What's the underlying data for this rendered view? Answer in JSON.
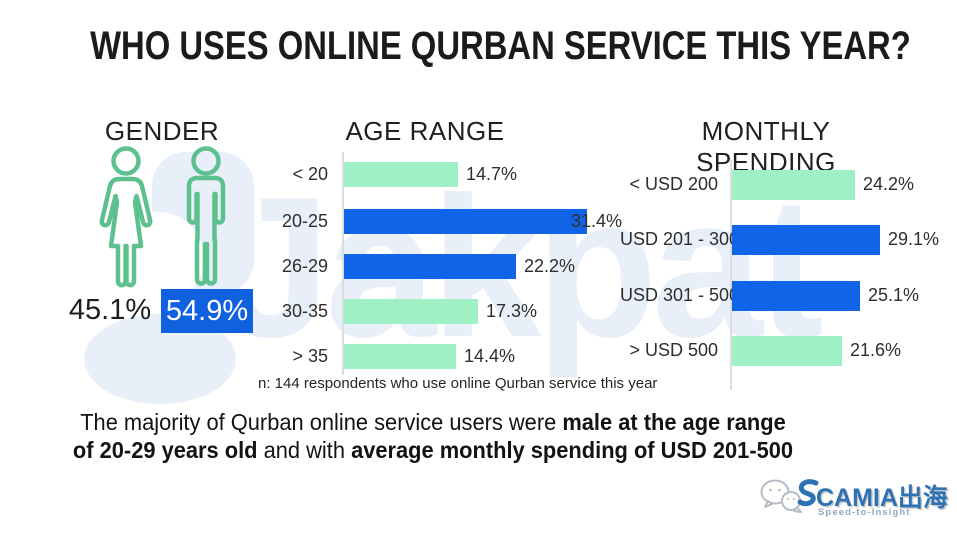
{
  "title": "WHO USES ONLINE QURBAN SERVICE THIS YEAR?",
  "watermark_text": "Jakpat",
  "gender": {
    "heading": "GENDER",
    "female_value": "45.1%",
    "male_value": "54.9%"
  },
  "chart_data": [
    {
      "type": "bar",
      "orientation": "horizontal",
      "title": "AGE RANGE",
      "categories": [
        "< 20",
        "20-25",
        "26-29",
        "30-35",
        "> 35"
      ],
      "values": [
        14.7,
        31.4,
        22.2,
        17.3,
        14.4
      ],
      "value_labels": [
        "14.7%",
        "31.4%",
        "22.2%",
        "17.3%",
        "14.4%"
      ],
      "bar_colors": [
        "green",
        "blue",
        "blue",
        "green",
        "green"
      ],
      "xlim": [
        0,
        35
      ],
      "grid": false,
      "value_label_position": "end-of-bar"
    },
    {
      "type": "bar",
      "orientation": "horizontal",
      "title": "MONTHLY SPENDING",
      "categories": [
        "< USD 200",
        "USD 201 - 300",
        "USD 301 - 500",
        "> USD 500"
      ],
      "values": [
        24.2,
        29.1,
        25.1,
        21.6
      ],
      "value_labels": [
        "24.2%",
        "29.1%",
        "25.1%",
        "21.6%"
      ],
      "bar_colors": [
        "green",
        "blue",
        "blue",
        "green"
      ],
      "xlim": [
        0,
        32
      ],
      "grid": false,
      "value_label_position": "end-of-bar"
    }
  ],
  "note": "n: 144 respondents who use online Qurban service this year",
  "summary": {
    "segments": [
      {
        "text": "The majority of Qurban online service users were ",
        "bold": false
      },
      {
        "text": "male at the age range of 20-29 years old",
        "bold": true
      },
      {
        "text": " and with ",
        "bold": false
      },
      {
        "text": "average monthly spending of USD 201-500",
        "bold": true
      }
    ]
  },
  "footer_logo": {
    "brand": "CAMIA出海",
    "tagline": "Speed-to-Insight"
  },
  "colors": {
    "bar_blue": "#0F64E8",
    "bar_green": "#A0F0C5",
    "badge_blue": "#1061E0",
    "icon_green": "#5CC08F",
    "watermark": "#E9EFF8",
    "brand_blue": "#2F72B4",
    "tagline_gray": "#94A7C1"
  }
}
